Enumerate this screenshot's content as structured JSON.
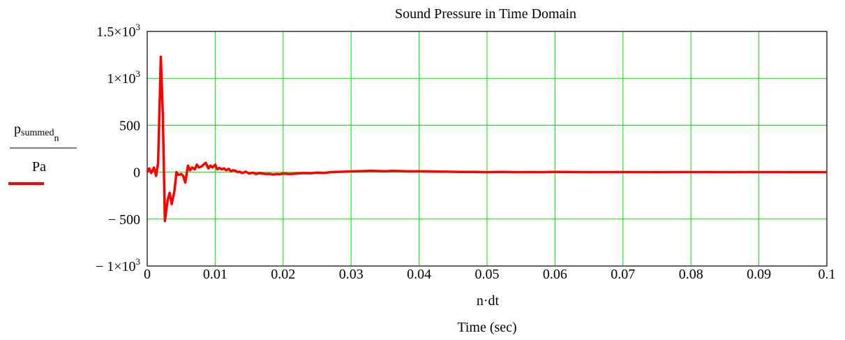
{
  "chart_data": {
    "type": "line",
    "title": "Sound Pressure in Time Domain",
    "xlabel_expr": "n·dt",
    "xlabel": "Time (sec)",
    "ylabel": {
      "main": "p",
      "sub": "summed",
      "subsub": "n",
      "unit": "Pa"
    },
    "xlim": [
      0,
      0.1
    ],
    "ylim": [
      -1000,
      1500
    ],
    "x_ticks": [
      0,
      0.01,
      0.02,
      0.03,
      0.04,
      0.05,
      0.06,
      0.07,
      0.08,
      0.09,
      0.1
    ],
    "x_tick_labels": [
      "0",
      "0.01",
      "0.02",
      "0.03",
      "0.04",
      "0.05",
      "0.06",
      "0.07",
      "0.08",
      "0.09",
      "0.1"
    ],
    "y_ticks": [
      -1000,
      -500,
      0,
      500,
      1000,
      1500
    ],
    "y_tick_labels": [
      {
        "base": "− 1×10",
        "exp": "3"
      },
      {
        "base": "− 500",
        "exp": ""
      },
      {
        "base": "0",
        "exp": ""
      },
      {
        "base": "500",
        "exp": ""
      },
      {
        "base": "1×10",
        "exp": "3"
      },
      {
        "base": "1.5×10",
        "exp": "3"
      }
    ],
    "grid": true,
    "colors": {
      "series": "#ff0000",
      "grid": "#00e000",
      "axes": "#000000"
    },
    "series": [
      {
        "legend_marker": true,
        "x": [
          0,
          0.0003,
          0.0006,
          0.001,
          0.0013,
          0.0016,
          0.002,
          0.0023,
          0.0026,
          0.003,
          0.0033,
          0.0036,
          0.004,
          0.0043,
          0.0046,
          0.005,
          0.0053,
          0.0056,
          0.006,
          0.0063,
          0.0066,
          0.007,
          0.0073,
          0.0076,
          0.008,
          0.0083,
          0.0086,
          0.009,
          0.0093,
          0.0096,
          0.01,
          0.0103,
          0.0106,
          0.011,
          0.0113,
          0.0116,
          0.012,
          0.0123,
          0.0126,
          0.013,
          0.0133,
          0.0136,
          0.014,
          0.0145,
          0.015,
          0.0155,
          0.016,
          0.0165,
          0.017,
          0.0175,
          0.018,
          0.0185,
          0.019,
          0.0195,
          0.02,
          0.021,
          0.022,
          0.023,
          0.024,
          0.025,
          0.026,
          0.027,
          0.028,
          0.029,
          0.03,
          0.031,
          0.032,
          0.033,
          0.034,
          0.035,
          0.036,
          0.037,
          0.038,
          0.039,
          0.04,
          0.042,
          0.044,
          0.046,
          0.048,
          0.05,
          0.052,
          0.054,
          0.056,
          0.058,
          0.06,
          0.065,
          0.07,
          0.075,
          0.08,
          0.085,
          0.09,
          0.095,
          0.1
        ],
        "values": [
          0,
          40,
          -10,
          50,
          -40,
          100,
          1230,
          600,
          -520,
          -300,
          -220,
          -340,
          -200,
          0,
          -30,
          -20,
          -40,
          -110,
          70,
          20,
          50,
          30,
          80,
          50,
          60,
          80,
          100,
          40,
          70,
          50,
          80,
          30,
          45,
          30,
          40,
          20,
          35,
          10,
          20,
          15,
          0,
          5,
          -10,
          5,
          -15,
          -5,
          -20,
          -10,
          -15,
          -20,
          -18,
          -25,
          -20,
          -22,
          -15,
          -20,
          -15,
          -10,
          -12,
          -5,
          -8,
          0,
          2,
          5,
          8,
          10,
          12,
          15,
          12,
          10,
          14,
          12,
          10,
          8,
          10,
          6,
          5,
          3,
          2,
          0,
          2,
          0,
          1,
          0,
          2,
          0,
          1,
          0,
          1,
          0,
          1,
          0,
          0
        ]
      }
    ]
  }
}
